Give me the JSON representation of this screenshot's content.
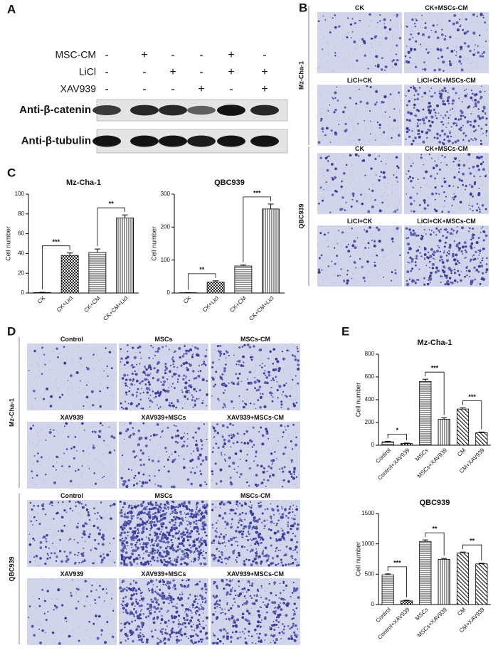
{
  "panel_labels": [
    "A",
    "B",
    "C",
    "D",
    "E"
  ],
  "blot": {
    "rows": [
      {
        "label": "MSC-CM",
        "signs": [
          "-",
          "+",
          "-",
          "-",
          "+",
          "-"
        ]
      },
      {
        "label": "LiCl",
        "signs": [
          "-",
          "-",
          "+",
          "-",
          "+",
          "+"
        ]
      },
      {
        "label": "XAV939",
        "signs": [
          "-",
          "-",
          "-",
          "+",
          "-",
          "+"
        ]
      }
    ],
    "bands": [
      "Anti-β-catenin",
      "Anti-β-tubulin"
    ]
  },
  "micrographs_b": {
    "groups": [
      "Mz-Cha-1",
      "QBC939"
    ],
    "labels": [
      "CK",
      "CK+MSCs-CM",
      "LiCl+CK",
      "LiCl+CK+MSCs-CM"
    ]
  },
  "micrographs_d": {
    "groups": [
      "Mz-Cha-1",
      "QBC939"
    ],
    "labels": [
      "Control",
      "MSCs",
      "MSCs-CM",
      "XAV939",
      "XAV939+MSCs",
      "XAV939+MSCs-CM"
    ]
  },
  "chart_data": [
    {
      "type": "bar",
      "title": "Mz-Cha-1",
      "y_label": "Cell number",
      "categories": [
        "CK",
        "CK+Licl",
        "CK+CM",
        "CK+CM+Licl"
      ],
      "values": [
        0.5,
        38,
        41,
        76
      ],
      "errors": [
        0.3,
        2.5,
        3.5,
        3
      ],
      "annotations": [
        "***",
        "**"
      ],
      "patterns": [
        "none",
        "checker",
        "horizontal",
        "vertical"
      ],
      "color": "#000000",
      "ylim": [
        0,
        100
      ],
      "yticks": [
        0,
        20,
        40,
        60,
        80,
        100
      ]
    },
    {
      "type": "bar",
      "title": "QBC939",
      "y_label": "Cell number",
      "categories": [
        "CK",
        "CK+Licl",
        "CK+CM",
        "CK+CM+Licl"
      ],
      "values": [
        1,
        33,
        82,
        255
      ],
      "errors": [
        0.5,
        4,
        3,
        15
      ],
      "annotations": [
        "**",
        "***"
      ],
      "patterns": [
        "none",
        "checker",
        "horizontal",
        "vertical"
      ],
      "color": "#000000",
      "ylim": [
        0,
        300
      ],
      "yticks": [
        0,
        100,
        200,
        300
      ]
    },
    {
      "type": "bar",
      "title": "Mz-Cha-1",
      "y_label": "Cell number",
      "categories": [
        "Control",
        "Control+XAV939",
        "MSCs",
        "MSCs+XAV939",
        "CM",
        "CM+XAV939"
      ],
      "values": [
        30,
        15,
        560,
        228,
        318,
        110
      ],
      "errors": [
        5,
        4,
        20,
        12,
        10,
        6
      ],
      "annotations": [
        "*",
        "***",
        "***"
      ],
      "patterns": [
        "horizontal",
        "checker",
        "horizontal",
        "vertical",
        "diagonal",
        "diagonal"
      ],
      "color": "#000000",
      "ylim": [
        0,
        800
      ],
      "yticks": [
        0,
        200,
        400,
        600,
        800
      ]
    },
    {
      "type": "bar",
      "title": "QBC939",
      "y_label": "Cell number",
      "categories": [
        "Control",
        "Control+XAV939",
        "MSCs",
        "MSCs+XAV939",
        "CM",
        "CM+XAV939"
      ],
      "values": [
        490,
        60,
        1040,
        745,
        850,
        670
      ],
      "errors": [
        15,
        10,
        25,
        15,
        15,
        10
      ],
      "annotations": [
        "***",
        "**",
        "**"
      ],
      "patterns": [
        "horizontal",
        "checker",
        "horizontal",
        "vertical",
        "diagonal",
        "diagonal"
      ],
      "color": "#000000",
      "ylim": [
        0,
        1500
      ],
      "yticks": [
        0,
        500,
        1000,
        1500
      ]
    }
  ]
}
